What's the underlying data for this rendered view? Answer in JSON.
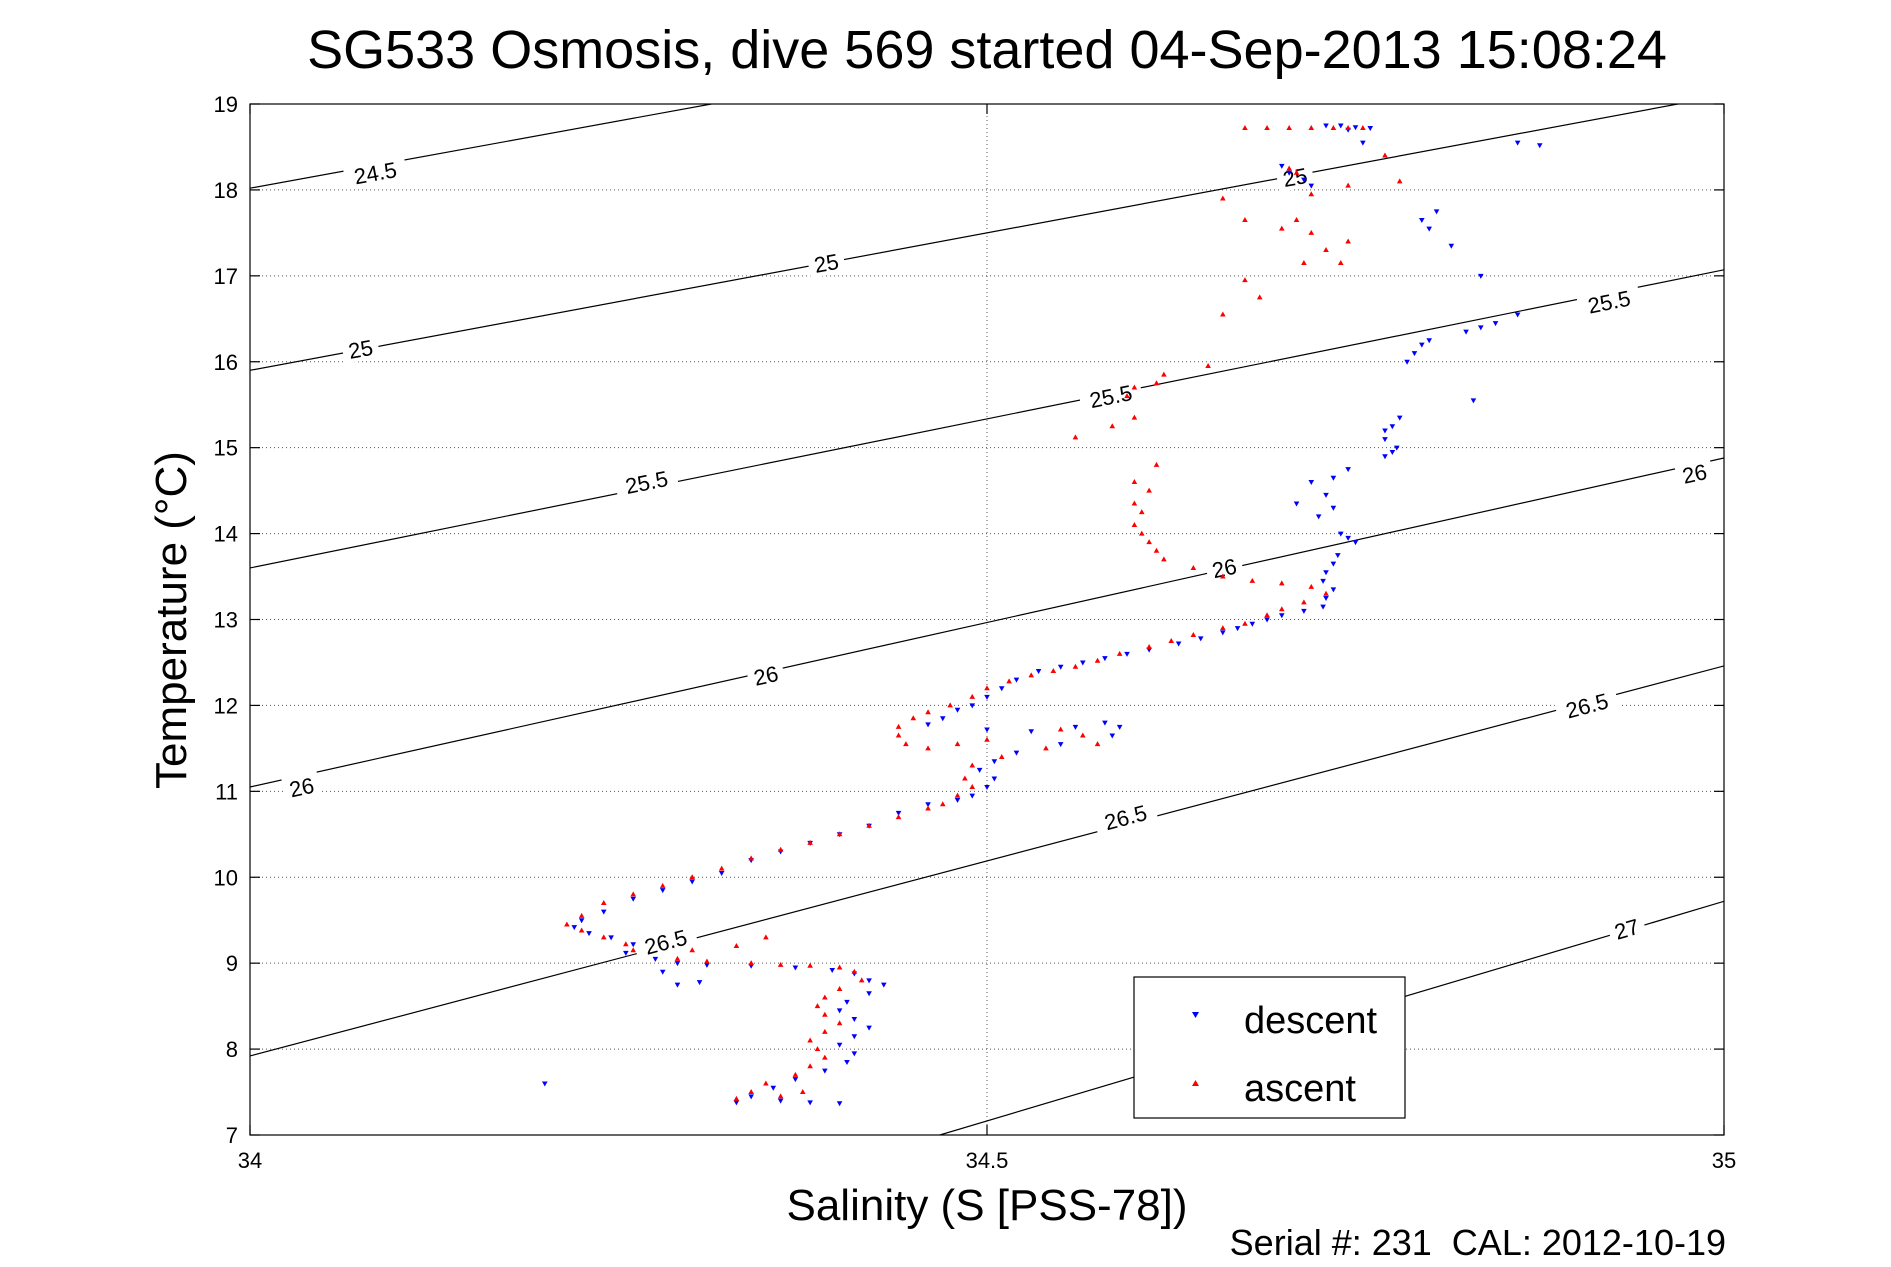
{
  "chart_data": {
    "type": "scatter",
    "title": "SG533 Osmosis, dive 569 started 04-Sep-2013 15:08:24",
    "xlabel": "Salinity (S [PSS-78])",
    "ylabel": "Temperature (°C)",
    "footer": "Serial #: 231  CAL: 2012-10-19",
    "xlim": [
      34,
      35
    ],
    "ylim": [
      7,
      19
    ],
    "xticks": [
      34,
      34.5,
      35
    ],
    "xtick_labels": [
      "34",
      "34.5",
      "35"
    ],
    "yticks": [
      7,
      8,
      9,
      10,
      11,
      12,
      13,
      14,
      15,
      16,
      17,
      18,
      19
    ],
    "ytick_labels": [
      "7",
      "8",
      "9",
      "10",
      "11",
      "12",
      "13",
      "14",
      "15",
      "16",
      "17",
      "18",
      "19"
    ],
    "grid": true,
    "legend_position": "bottom-right",
    "density_contours": [
      {
        "level": "24.5",
        "points": [
          [
            34,
            18.02
          ],
          [
            34.313,
            19
          ]
        ]
      },
      {
        "level": "25",
        "points": [
          [
            34,
            15.9
          ],
          [
            35,
            19.1
          ]
        ]
      },
      {
        "level": "25.5",
        "points": [
          [
            34,
            13.6
          ],
          [
            35,
            17.07
          ]
        ]
      },
      {
        "level": "26",
        "points": [
          [
            34,
            11.05
          ],
          [
            35,
            14.88
          ]
        ]
      },
      {
        "level": "26.5",
        "points": [
          [
            34,
            7.92
          ],
          [
            35,
            12.46
          ]
        ]
      },
      {
        "level": "27",
        "points": [
          [
            34.468,
            7
          ],
          [
            35,
            9.72
          ]
        ]
      }
    ],
    "contour_labels": [
      {
        "text": "24.5",
        "x": 34.085,
        "y": 18.2
      },
      {
        "text": "25",
        "x": 34.391,
        "y": 17.15
      },
      {
        "text": "25",
        "x": 34.075,
        "y": 16.15
      },
      {
        "text": "25",
        "x": 34.709,
        "y": 18.15
      },
      {
        "text": "25.5",
        "x": 34.269,
        "y": 14.6
      },
      {
        "text": "25.5",
        "x": 34.584,
        "y": 15.6
      },
      {
        "text": "25.5",
        "x": 34.922,
        "y": 16.7
      },
      {
        "text": "26",
        "x": 34.035,
        "y": 11.05
      },
      {
        "text": "26",
        "x": 34.35,
        "y": 12.35
      },
      {
        "text": "26",
        "x": 34.661,
        "y": 13.6
      },
      {
        "text": "26",
        "x": 34.98,
        "y": 14.7
      },
      {
        "text": "26.5",
        "x": 34.282,
        "y": 9.25
      },
      {
        "text": "26.5",
        "x": 34.594,
        "y": 10.7
      },
      {
        "text": "26.5",
        "x": 34.907,
        "y": 12.0
      },
      {
        "text": "27",
        "x": 34.934,
        "y": 9.4
      }
    ],
    "series": [
      {
        "name": "descent",
        "color": "#0000ff",
        "marker": "triangle-down",
        "points": [
          [
            34.73,
            18.75
          ],
          [
            34.74,
            18.75
          ],
          [
            34.75,
            18.73
          ],
          [
            34.76,
            18.72
          ],
          [
            34.745,
            18.7
          ],
          [
            34.755,
            18.55
          ],
          [
            34.7,
            18.28
          ],
          [
            34.705,
            18.2
          ],
          [
            34.715,
            18.12
          ],
          [
            34.72,
            18.05
          ],
          [
            34.86,
            18.55
          ],
          [
            34.875,
            18.52
          ],
          [
            34.805,
            17.75
          ],
          [
            34.795,
            17.65
          ],
          [
            34.8,
            17.55
          ],
          [
            34.815,
            17.35
          ],
          [
            34.835,
            17.0
          ],
          [
            34.86,
            16.55
          ],
          [
            34.845,
            16.45
          ],
          [
            34.835,
            16.4
          ],
          [
            34.825,
            16.35
          ],
          [
            34.8,
            16.25
          ],
          [
            34.795,
            16.2
          ],
          [
            34.79,
            16.1
          ],
          [
            34.785,
            16.0
          ],
          [
            34.83,
            15.55
          ],
          [
            34.78,
            15.35
          ],
          [
            34.775,
            15.25
          ],
          [
            34.77,
            15.2
          ],
          [
            34.77,
            15.1
          ],
          [
            34.778,
            15.0
          ],
          [
            34.775,
            14.95
          ],
          [
            34.77,
            14.9
          ],
          [
            34.745,
            14.75
          ],
          [
            34.735,
            14.65
          ],
          [
            34.72,
            14.6
          ],
          [
            34.73,
            14.45
          ],
          [
            34.71,
            14.35
          ],
          [
            34.735,
            14.3
          ],
          [
            34.725,
            14.2
          ],
          [
            34.74,
            14.0
          ],
          [
            34.745,
            13.95
          ],
          [
            34.75,
            13.9
          ],
          [
            34.738,
            13.75
          ],
          [
            34.735,
            13.65
          ],
          [
            34.73,
            13.55
          ],
          [
            34.728,
            13.45
          ],
          [
            34.735,
            13.35
          ],
          [
            34.73,
            13.25
          ],
          [
            34.728,
            13.15
          ],
          [
            34.715,
            13.1
          ],
          [
            34.7,
            13.05
          ],
          [
            34.69,
            13.0
          ],
          [
            34.68,
            12.95
          ],
          [
            34.67,
            12.9
          ],
          [
            34.66,
            12.85
          ],
          [
            34.645,
            12.78
          ],
          [
            34.63,
            12.72
          ],
          [
            34.61,
            12.65
          ],
          [
            34.595,
            12.6
          ],
          [
            34.58,
            12.55
          ],
          [
            34.565,
            12.5
          ],
          [
            34.55,
            12.45
          ],
          [
            34.535,
            12.4
          ],
          [
            34.52,
            12.3
          ],
          [
            34.51,
            12.2
          ],
          [
            34.5,
            12.1
          ],
          [
            34.49,
            12.0
          ],
          [
            34.48,
            11.95
          ],
          [
            34.47,
            11.85
          ],
          [
            34.46,
            11.78
          ],
          [
            34.5,
            11.72
          ],
          [
            34.53,
            11.7
          ],
          [
            34.56,
            11.75
          ],
          [
            34.58,
            11.8
          ],
          [
            34.59,
            11.75
          ],
          [
            34.585,
            11.65
          ],
          [
            34.55,
            11.55
          ],
          [
            34.52,
            11.45
          ],
          [
            34.505,
            11.35
          ],
          [
            34.495,
            11.25
          ],
          [
            34.505,
            11.15
          ],
          [
            34.5,
            11.05
          ],
          [
            34.49,
            10.95
          ],
          [
            34.48,
            10.9
          ],
          [
            34.46,
            10.85
          ],
          [
            34.44,
            10.75
          ],
          [
            34.42,
            10.6
          ],
          [
            34.4,
            10.5
          ],
          [
            34.38,
            10.4
          ],
          [
            34.36,
            10.3
          ],
          [
            34.34,
            10.2
          ],
          [
            34.32,
            10.05
          ],
          [
            34.3,
            9.95
          ],
          [
            34.28,
            9.85
          ],
          [
            34.26,
            9.75
          ],
          [
            34.24,
            9.6
          ],
          [
            34.225,
            9.5
          ],
          [
            34.22,
            9.42
          ],
          [
            34.23,
            9.35
          ],
          [
            34.245,
            9.3
          ],
          [
            34.26,
            9.22
          ],
          [
            34.255,
            9.12
          ],
          [
            34.275,
            9.05
          ],
          [
            34.29,
            9.0
          ],
          [
            34.31,
            8.98
          ],
          [
            34.34,
            8.97
          ],
          [
            34.37,
            8.95
          ],
          [
            34.395,
            8.92
          ],
          [
            34.41,
            8.88
          ],
          [
            34.42,
            8.8
          ],
          [
            34.43,
            8.75
          ],
          [
            34.42,
            8.65
          ],
          [
            34.405,
            8.55
          ],
          [
            34.4,
            8.45
          ],
          [
            34.41,
            8.35
          ],
          [
            34.42,
            8.25
          ],
          [
            34.41,
            8.15
          ],
          [
            34.4,
            8.05
          ],
          [
            34.41,
            7.95
          ],
          [
            34.405,
            7.85
          ],
          [
            34.39,
            7.75
          ],
          [
            34.37,
            7.65
          ],
          [
            34.355,
            7.55
          ],
          [
            34.34,
            7.45
          ],
          [
            34.36,
            7.4
          ],
          [
            34.38,
            7.38
          ],
          [
            34.4,
            7.37
          ],
          [
            34.33,
            7.38
          ],
          [
            34.2,
            7.6
          ],
          [
            34.29,
            8.75
          ],
          [
            34.305,
            8.78
          ],
          [
            34.28,
            8.9
          ]
        ]
      },
      {
        "name": "ascent",
        "color": "#ff0000",
        "marker": "triangle-up",
        "points": [
          [
            34.675,
            18.72
          ],
          [
            34.69,
            18.72
          ],
          [
            34.705,
            18.72
          ],
          [
            34.72,
            18.72
          ],
          [
            34.735,
            18.72
          ],
          [
            34.745,
            18.72
          ],
          [
            34.755,
            18.72
          ],
          [
            34.705,
            18.25
          ],
          [
            34.71,
            18.2
          ],
          [
            34.72,
            17.95
          ],
          [
            34.745,
            18.05
          ],
          [
            34.77,
            18.4
          ],
          [
            34.78,
            18.1
          ],
          [
            34.66,
            17.9
          ],
          [
            34.675,
            17.65
          ],
          [
            34.7,
            17.55
          ],
          [
            34.71,
            17.65
          ],
          [
            34.72,
            17.5
          ],
          [
            34.715,
            17.15
          ],
          [
            34.73,
            17.3
          ],
          [
            34.74,
            17.15
          ],
          [
            34.745,
            17.4
          ],
          [
            34.675,
            16.95
          ],
          [
            34.685,
            16.75
          ],
          [
            34.66,
            16.55
          ],
          [
            34.65,
            15.95
          ],
          [
            34.62,
            15.85
          ],
          [
            34.615,
            15.75
          ],
          [
            34.6,
            15.7
          ],
          [
            34.595,
            15.6
          ],
          [
            34.6,
            15.35
          ],
          [
            34.585,
            15.25
          ],
          [
            34.56,
            15.12
          ],
          [
            34.615,
            14.8
          ],
          [
            34.6,
            14.6
          ],
          [
            34.61,
            14.5
          ],
          [
            34.6,
            14.35
          ],
          [
            34.605,
            14.25
          ],
          [
            34.6,
            14.1
          ],
          [
            34.605,
            14.0
          ],
          [
            34.61,
            13.9
          ],
          [
            34.615,
            13.8
          ],
          [
            34.62,
            13.7
          ],
          [
            34.64,
            13.6
          ],
          [
            34.66,
            13.5
          ],
          [
            34.68,
            13.45
          ],
          [
            34.7,
            13.42
          ],
          [
            34.72,
            13.38
          ],
          [
            34.73,
            13.3
          ],
          [
            34.715,
            13.2
          ],
          [
            34.7,
            13.12
          ],
          [
            34.69,
            13.05
          ],
          [
            34.675,
            12.95
          ],
          [
            34.66,
            12.9
          ],
          [
            34.64,
            12.82
          ],
          [
            34.625,
            12.75
          ],
          [
            34.61,
            12.68
          ],
          [
            34.59,
            12.6
          ],
          [
            34.575,
            12.52
          ],
          [
            34.56,
            12.45
          ],
          [
            34.545,
            12.4
          ],
          [
            34.53,
            12.35
          ],
          [
            34.515,
            12.28
          ],
          [
            34.5,
            12.2
          ],
          [
            34.49,
            12.1
          ],
          [
            34.475,
            12.0
          ],
          [
            34.46,
            11.92
          ],
          [
            34.45,
            11.85
          ],
          [
            34.44,
            11.75
          ],
          [
            34.44,
            11.65
          ],
          [
            34.445,
            11.55
          ],
          [
            34.46,
            11.5
          ],
          [
            34.48,
            11.55
          ],
          [
            34.5,
            11.6
          ],
          [
            34.55,
            11.72
          ],
          [
            34.565,
            11.65
          ],
          [
            34.575,
            11.55
          ],
          [
            34.54,
            11.5
          ],
          [
            34.51,
            11.4
          ],
          [
            34.49,
            11.3
          ],
          [
            34.485,
            11.15
          ],
          [
            34.49,
            11.05
          ],
          [
            34.48,
            10.95
          ],
          [
            34.47,
            10.85
          ],
          [
            34.46,
            10.8
          ],
          [
            34.44,
            10.7
          ],
          [
            34.42,
            10.6
          ],
          [
            34.4,
            10.5
          ],
          [
            34.38,
            10.4
          ],
          [
            34.36,
            10.32
          ],
          [
            34.34,
            10.22
          ],
          [
            34.32,
            10.1
          ],
          [
            34.3,
            10.0
          ],
          [
            34.28,
            9.9
          ],
          [
            34.26,
            9.8
          ],
          [
            34.24,
            9.7
          ],
          [
            34.225,
            9.55
          ],
          [
            34.215,
            9.45
          ],
          [
            34.225,
            9.38
          ],
          [
            34.24,
            9.3
          ],
          [
            34.255,
            9.22
          ],
          [
            34.26,
            9.15
          ],
          [
            34.29,
            9.05
          ],
          [
            34.31,
            9.02
          ],
          [
            34.34,
            9.0
          ],
          [
            34.36,
            8.98
          ],
          [
            34.38,
            8.97
          ],
          [
            34.4,
            8.95
          ],
          [
            34.41,
            8.9
          ],
          [
            34.415,
            8.8
          ],
          [
            34.4,
            8.7
          ],
          [
            34.39,
            8.6
          ],
          [
            34.385,
            8.5
          ],
          [
            34.39,
            8.4
          ],
          [
            34.4,
            8.3
          ],
          [
            34.39,
            8.2
          ],
          [
            34.38,
            8.1
          ],
          [
            34.385,
            8.0
          ],
          [
            34.39,
            7.9
          ],
          [
            34.38,
            7.8
          ],
          [
            34.37,
            7.7
          ],
          [
            34.35,
            7.6
          ],
          [
            34.34,
            7.5
          ],
          [
            34.33,
            7.42
          ],
          [
            34.36,
            7.45
          ],
          [
            34.375,
            7.5
          ],
          [
            34.33,
            9.2
          ],
          [
            34.35,
            9.3
          ],
          [
            34.3,
            9.15
          ]
        ]
      }
    ]
  }
}
